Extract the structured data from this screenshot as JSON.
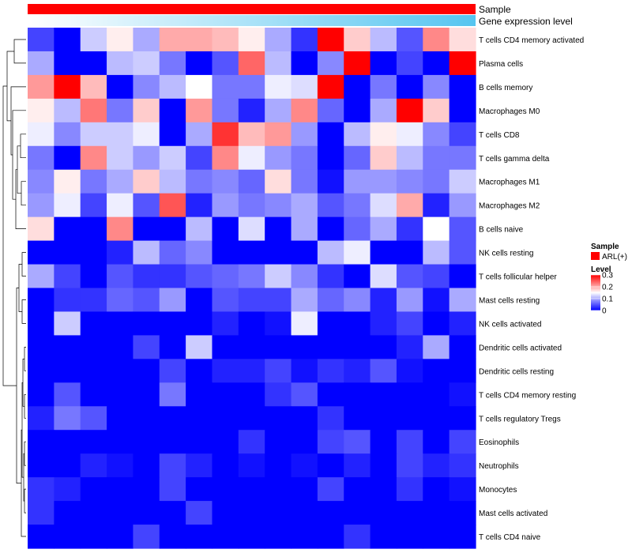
{
  "chart_data": {
    "type": "heatmap",
    "title": "",
    "annotation_tracks": [
      {
        "name": "Sample",
        "kind": "categorical",
        "values": [
          "ARL(+)"
        ]
      },
      {
        "name": "Gene expression level",
        "kind": "gradient"
      }
    ],
    "rows": [
      "T cells CD4 memory activated",
      "Plasma cells",
      "B cells memory",
      "Macrophages M0",
      "T cells CD8",
      "T cells gamma delta",
      "Macrophages M1",
      "Macrophages M2",
      "B cells naive",
      "NK cells resting",
      "T cells follicular helper",
      "Mast cells resting",
      "NK cells activated",
      "Dendritic cells activated",
      "Dendritic cells resting",
      "T cells CD4 memory resting",
      "T cells regulatory  Tregs",
      "Eosinophils",
      "Neutrophils",
      "Monocytes",
      "Mast cells activated",
      "T cells CD4 naive"
    ],
    "values": [
      [
        0.04,
        0.0,
        0.12,
        0.16,
        0.1,
        0.2,
        0.2,
        0.19,
        0.16,
        0.1,
        0.03,
        0.3,
        0.18,
        0.11,
        0.05,
        0.22,
        0.17
      ],
      [
        0.1,
        0.0,
        0.0,
        0.11,
        0.12,
        0.07,
        0.0,
        0.05,
        0.24,
        0.11,
        0.0,
        0.08,
        0.3,
        0.0,
        0.04,
        0.0,
        0.3
      ],
      [
        0.21,
        0.3,
        0.19,
        0.0,
        0.08,
        0.11,
        0.15,
        0.07,
        0.07,
        0.14,
        0.13,
        0.3,
        0.0,
        0.07,
        0.0,
        0.08,
        0.0
      ],
      [
        0.16,
        0.11,
        0.23,
        0.07,
        0.18,
        0.0,
        0.21,
        0.07,
        0.02,
        0.1,
        0.22,
        0.06,
        0.0,
        0.1,
        0.3,
        0.18,
        0.0
      ],
      [
        0.14,
        0.08,
        0.12,
        0.12,
        0.14,
        0.0,
        0.1,
        0.27,
        0.19,
        0.21,
        0.09,
        0.0,
        0.11,
        0.16,
        0.14,
        0.08,
        0.04
      ],
      [
        0.07,
        0.0,
        0.22,
        0.12,
        0.09,
        0.12,
        0.04,
        0.22,
        0.14,
        0.09,
        0.07,
        0.0,
        0.06,
        0.18,
        0.11,
        0.07,
        0.07
      ],
      [
        0.08,
        0.16,
        0.07,
        0.1,
        0.18,
        0.11,
        0.07,
        0.08,
        0.06,
        0.17,
        0.07,
        0.01,
        0.09,
        0.09,
        0.08,
        0.07,
        0.12
      ],
      [
        0.09,
        0.14,
        0.04,
        0.14,
        0.05,
        0.25,
        0.02,
        0.09,
        0.07,
        0.08,
        0.1,
        0.05,
        0.07,
        0.13,
        0.2,
        0.02,
        0.09
      ],
      [
        0.17,
        0.0,
        0.0,
        0.22,
        0.0,
        0.0,
        0.11,
        0.0,
        0.13,
        0.0,
        0.1,
        0.0,
        0.06,
        0.1,
        0.03,
        0.15,
        0.05
      ],
      [
        0.0,
        0.0,
        0.0,
        0.02,
        0.11,
        0.06,
        0.08,
        0.0,
        0.0,
        0.0,
        0.0,
        0.11,
        0.14,
        0.0,
        0.0,
        0.11,
        0.05
      ],
      [
        0.1,
        0.04,
        0.0,
        0.05,
        0.03,
        0.03,
        0.05,
        0.06,
        0.07,
        0.12,
        0.08,
        0.03,
        0.0,
        0.13,
        0.05,
        0.04,
        0.0
      ],
      [
        0.0,
        0.03,
        0.03,
        0.06,
        0.05,
        0.09,
        0.0,
        0.05,
        0.04,
        0.04,
        0.1,
        0.06,
        0.08,
        0.02,
        0.09,
        0.01,
        0.1
      ],
      [
        0.0,
        0.12,
        0.0,
        0.0,
        0.0,
        0.0,
        0.0,
        0.02,
        0.0,
        0.01,
        0.14,
        0.0,
        0.0,
        0.02,
        0.04,
        0.0,
        0.02
      ],
      [
        0.0,
        0.0,
        0.0,
        0.0,
        0.04,
        0.0,
        0.12,
        0.0,
        0.0,
        0.0,
        0.0,
        0.0,
        0.0,
        0.0,
        0.02,
        0.1,
        0.0
      ],
      [
        0.0,
        0.0,
        0.0,
        0.0,
        0.0,
        0.04,
        0.0,
        0.02,
        0.02,
        0.04,
        0.01,
        0.03,
        0.02,
        0.05,
        0.01,
        0.0,
        0.0
      ],
      [
        0.0,
        0.05,
        0.0,
        0.0,
        0.0,
        0.07,
        0.0,
        0.0,
        0.0,
        0.03,
        0.05,
        0.0,
        0.0,
        0.0,
        0.0,
        0.0,
        0.01
      ],
      [
        0.02,
        0.07,
        0.05,
        0.0,
        0.0,
        0.0,
        0.0,
        0.0,
        0.0,
        0.0,
        0.0,
        0.03,
        0.0,
        0.0,
        0.0,
        0.0,
        0.0
      ],
      [
        0.0,
        0.0,
        0.0,
        0.0,
        0.0,
        0.0,
        0.0,
        0.0,
        0.03,
        0.0,
        0.0,
        0.04,
        0.05,
        0.0,
        0.04,
        0.0,
        0.04
      ],
      [
        0.0,
        0.0,
        0.02,
        0.01,
        0.0,
        0.04,
        0.02,
        0.0,
        0.01,
        0.0,
        0.01,
        0.0,
        0.02,
        0.0,
        0.04,
        0.02,
        0.03
      ],
      [
        0.03,
        0.02,
        0.0,
        0.0,
        0.0,
        0.04,
        0.0,
        0.0,
        0.0,
        0.0,
        0.0,
        0.04,
        0.0,
        0.0,
        0.03,
        0.0,
        0.01
      ],
      [
        0.03,
        0.0,
        0.0,
        0.0,
        0.0,
        0.0,
        0.04,
        0.0,
        0.0,
        0.0,
        0.0,
        0.0,
        0.0,
        0.0,
        0.0,
        0.0,
        0.0
      ],
      [
        0.0,
        0.0,
        0.0,
        0.0,
        0.04,
        0.0,
        0.0,
        0.0,
        0.0,
        0.0,
        0.0,
        0.0,
        0.03,
        0.0,
        0.0,
        0.0,
        0.0
      ]
    ],
    "color_scale": {
      "low": "#0000FF",
      "mid": "#FFFFFF",
      "high": "#FF0000",
      "min": 0,
      "mid_value": 0.15,
      "max": 0.3
    },
    "legend": {
      "sample_title": "Sample",
      "sample_entry": "ARL(+)",
      "sample_color": "#FF0000",
      "level_title": "Level",
      "level_ticks": [
        "0.3",
        "0.2",
        "0.1",
        "0"
      ],
      "level_tick_values": [
        0.3,
        0.2,
        0.1,
        0
      ]
    },
    "dendrogram": {
      "side": "left"
    }
  }
}
